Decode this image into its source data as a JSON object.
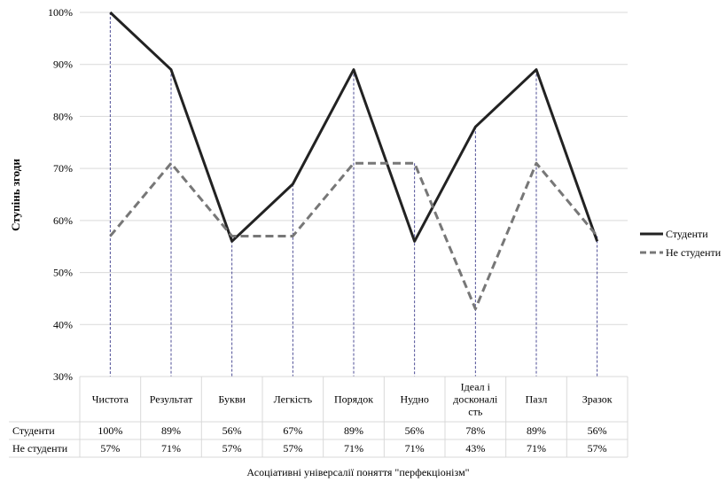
{
  "chart_data": {
    "type": "line",
    "categories": [
      "Чистота",
      "Результат",
      "Букви",
      "Легкість",
      "Порядок",
      "Нудно",
      "Ідеал і досконалість",
      "Пазл",
      "Зразок"
    ],
    "category_lines": [
      [
        "Чистота"
      ],
      [
        "Результат"
      ],
      [
        "Букви"
      ],
      [
        "Легкість"
      ],
      [
        "Порядок"
      ],
      [
        "Нудно"
      ],
      [
        "Ідеал і",
        "досконалі",
        "сть"
      ],
      [
        "Пазл"
      ],
      [
        "Зразок"
      ]
    ],
    "series": [
      {
        "name": "Студенти",
        "values": [
          100,
          89,
          56,
          67,
          89,
          56,
          78,
          89,
          56
        ],
        "labels": [
          "100%",
          "89%",
          "56%",
          "67%",
          "89%",
          "56%",
          "78%",
          "89%",
          "56%"
        ],
        "color": "#222222",
        "style": "solid"
      },
      {
        "name": "Не студенти",
        "values": [
          57,
          71,
          57,
          57,
          71,
          71,
          43,
          71,
          57
        ],
        "labels": [
          "57%",
          "71%",
          "57%",
          "57%",
          "71%",
          "71%",
          "43%",
          "71%",
          "57%"
        ],
        "color": "#777777",
        "style": "dashed"
      }
    ],
    "ylim": [
      30,
      100
    ],
    "yticks": [
      30,
      40,
      50,
      60,
      70,
      80,
      90,
      100
    ],
    "ytick_labels": [
      "30%",
      "40%",
      "50%",
      "60%",
      "70%",
      "80%",
      "90%",
      "100%"
    ],
    "ylabel": "Ступінь згоди",
    "xlabel": "Асоціативні універсалії поняття \"перфекціонізм\"",
    "grid": true,
    "legend_position": "right",
    "data_table": true,
    "drop_line_color": "#3a3a8a"
  }
}
